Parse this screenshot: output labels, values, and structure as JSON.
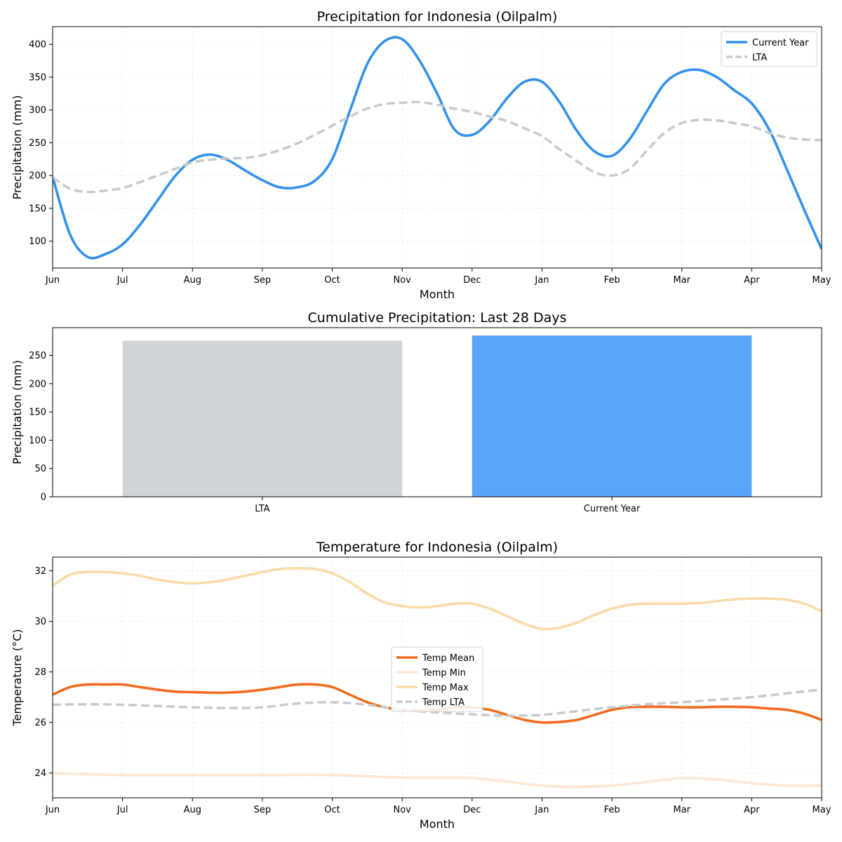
{
  "chart_data": [
    {
      "type": "line",
      "title": "Precipitation for Indonesia (Oilpalm)",
      "xlabel": "Month",
      "ylabel": "Precipitation (mm)",
      "x_ticks": [
        "Jun",
        "Jul",
        "Aug",
        "Sep",
        "Oct",
        "Nov",
        "Dec",
        "Jan",
        "Feb",
        "Mar",
        "Apr",
        "May"
      ],
      "y_ticks": [
        100,
        150,
        200,
        250,
        300,
        350,
        400
      ],
      "xlim": [
        0,
        11
      ],
      "ylim": [
        59,
        427
      ],
      "grid": true,
      "legend": "top-right",
      "series": [
        {
          "name": "Current Year",
          "color": "#3391ec",
          "style": "solid",
          "x": [
            0,
            0.25,
            0.5,
            0.75,
            1,
            1.25,
            1.5,
            1.75,
            2,
            2.25,
            2.5,
            2.75,
            3,
            3.25,
            3.5,
            3.75,
            4,
            4.25,
            4.5,
            4.75,
            5,
            5.25,
            5.5,
            5.75,
            6,
            6.25,
            6.5,
            6.75,
            7,
            7.25,
            7.5,
            7.75,
            8,
            8.25,
            8.5,
            8.75,
            9,
            9.25,
            9.5,
            9.75,
            10,
            10.25,
            10.5,
            10.75,
            11
          ],
          "values": [
            198,
            110,
            76,
            80,
            95,
            125,
            162,
            199,
            224,
            232,
            224,
            208,
            193,
            182,
            182,
            192,
            225,
            298,
            370,
            405,
            408,
            375,
            325,
            270,
            262,
            283,
            318,
            343,
            343,
            312,
            268,
            237,
            230,
            255,
            298,
            340,
            358,
            361,
            350,
            330,
            310,
            270,
            210,
            148,
            88
          ]
        },
        {
          "name": "LTA",
          "color": "#c8cbcd",
          "style": "dashed",
          "x": [
            0,
            0.25,
            0.5,
            0.75,
            1,
            1.25,
            1.5,
            1.75,
            2,
            2.25,
            2.5,
            2.75,
            3,
            3.25,
            3.5,
            3.75,
            4,
            4.25,
            4.5,
            4.75,
            5,
            5.25,
            5.5,
            5.75,
            6,
            6.25,
            6.5,
            6.75,
            7,
            7.25,
            7.5,
            7.75,
            8,
            8.25,
            8.5,
            8.75,
            9,
            9.25,
            9.5,
            9.75,
            10,
            10.25,
            10.5,
            10.75,
            11
          ],
          "values": [
            197,
            180,
            175,
            177,
            181,
            190,
            200,
            210,
            220,
            224,
            226,
            227,
            231,
            239,
            249,
            262,
            276,
            290,
            302,
            309,
            311,
            312,
            308,
            302,
            297,
            290,
            283,
            272,
            260,
            240,
            222,
            205,
            200,
            210,
            238,
            265,
            280,
            285,
            284,
            280,
            275,
            265,
            258,
            255,
            254
          ]
        }
      ]
    },
    {
      "type": "bar",
      "title": "Cumulative Precipitation: Last 28 Days",
      "xlabel": "",
      "ylabel": "Precipitation (mm)",
      "categories": [
        "LTA",
        "Current Year"
      ],
      "values": [
        276,
        285
      ],
      "colors": [
        "#d1d5d8",
        "#59a5f8"
      ],
      "y_ticks": [
        0,
        50,
        100,
        150,
        200,
        250
      ],
      "ylim": [
        0,
        299
      ],
      "grid": false
    },
    {
      "type": "line",
      "title": "Temperature for Indonesia (Oilpalm)",
      "xlabel": "Month",
      "ylabel": "Temperature (°C)",
      "x_ticks": [
        "Jun",
        "Jul",
        "Aug",
        "Sep",
        "Oct",
        "Nov",
        "Dec",
        "Jan",
        "Feb",
        "Mar",
        "Apr",
        "May"
      ],
      "y_ticks": [
        24,
        26,
        28,
        30,
        32
      ],
      "xlim": [
        0,
        11
      ],
      "ylim": [
        23.02,
        32.54
      ],
      "grid": true,
      "legend": "center",
      "series": [
        {
          "name": "Temp Mean",
          "color": "#f26b1d",
          "style": "solid",
          "x": [
            0,
            0.25,
            0.5,
            0.75,
            1,
            1.25,
            1.5,
            1.75,
            2,
            2.25,
            2.5,
            2.75,
            3,
            3.25,
            3.5,
            3.75,
            4,
            4.25,
            4.5,
            4.75,
            5,
            5.25,
            5.5,
            5.75,
            6,
            6.25,
            6.5,
            6.75,
            7,
            7.25,
            7.5,
            7.75,
            8,
            8.25,
            8.5,
            8.75,
            9,
            9.25,
            9.5,
            9.75,
            10,
            10.25,
            10.5,
            10.75,
            11
          ],
          "values": [
            27.1,
            27.4,
            27.5,
            27.5,
            27.5,
            27.4,
            27.3,
            27.22,
            27.2,
            27.18,
            27.18,
            27.22,
            27.3,
            27.4,
            27.5,
            27.5,
            27.4,
            27.1,
            26.8,
            26.6,
            26.5,
            26.48,
            26.5,
            26.6,
            26.6,
            26.5,
            26.3,
            26.1,
            26.0,
            26.02,
            26.1,
            26.3,
            26.5,
            26.6,
            26.62,
            26.62,
            26.6,
            26.6,
            26.62,
            26.62,
            26.6,
            26.55,
            26.5,
            26.35,
            26.1
          ]
        },
        {
          "name": "Temp Min",
          "color": "#fde7d4",
          "style": "solid",
          "x": [
            0,
            0.5,
            1,
            2,
            3,
            4,
            5,
            6,
            7,
            7.5,
            8,
            8.5,
            9,
            9.5,
            10,
            10.5,
            11
          ],
          "values": [
            24.0,
            23.95,
            23.92,
            23.92,
            23.92,
            23.92,
            23.82,
            23.8,
            23.5,
            23.45,
            23.5,
            23.65,
            23.8,
            23.75,
            23.6,
            23.5,
            23.5
          ]
        },
        {
          "name": "Temp Max",
          "color": "#fbdba8",
          "style": "solid",
          "x": [
            0,
            0.25,
            0.5,
            0.75,
            1,
            1.25,
            1.5,
            1.75,
            2,
            2.25,
            2.5,
            2.75,
            3,
            3.25,
            3.5,
            3.75,
            4,
            4.25,
            4.5,
            4.75,
            5,
            5.25,
            5.5,
            5.75,
            6,
            6.25,
            6.5,
            6.75,
            7,
            7.25,
            7.5,
            7.75,
            8,
            8.25,
            8.5,
            8.75,
            9,
            9.25,
            9.5,
            9.75,
            10,
            10.25,
            10.5,
            10.75,
            11
          ],
          "values": [
            31.4,
            31.85,
            31.95,
            31.95,
            31.9,
            31.8,
            31.65,
            31.55,
            31.5,
            31.55,
            31.65,
            31.8,
            31.95,
            32.07,
            32.1,
            32.07,
            31.9,
            31.55,
            31.1,
            30.75,
            30.6,
            30.55,
            30.6,
            30.7,
            30.7,
            30.5,
            30.2,
            29.9,
            29.7,
            29.75,
            29.95,
            30.25,
            30.5,
            30.65,
            30.7,
            30.7,
            30.7,
            30.72,
            30.8,
            30.87,
            30.9,
            30.9,
            30.85,
            30.7,
            30.4
          ]
        },
        {
          "name": "Temp LTA",
          "color": "#c8cbcd",
          "style": "dashed",
          "x": [
            0,
            0.5,
            1,
            1.5,
            2,
            2.5,
            3,
            3.5,
            4,
            4.5,
            5,
            5.5,
            6,
            6.5,
            7,
            7.5,
            8,
            8.5,
            9,
            9.5,
            10,
            10.5,
            11
          ],
          "values": [
            26.7,
            26.72,
            26.7,
            26.65,
            26.6,
            26.57,
            26.6,
            26.75,
            26.8,
            26.7,
            26.5,
            26.4,
            26.32,
            26.27,
            26.3,
            26.45,
            26.6,
            26.72,
            26.8,
            26.9,
            27.0,
            27.15,
            27.3
          ]
        }
      ]
    }
  ]
}
